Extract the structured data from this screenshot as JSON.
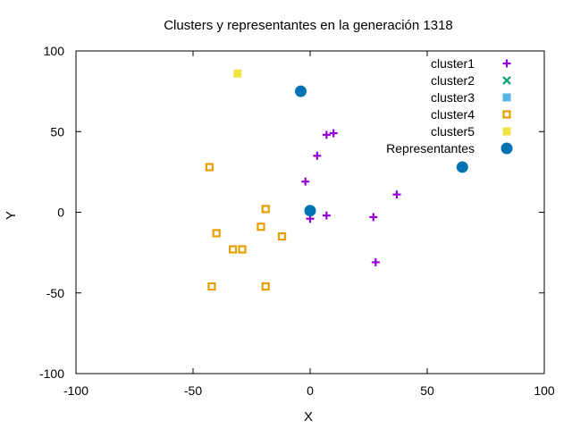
{
  "chart_data": {
    "type": "scatter",
    "title": "Clusters y representantes en la generación 1318",
    "xlabel": "X",
    "ylabel": "Y",
    "xlim": [
      -100,
      100
    ],
    "ylim": [
      -100,
      100
    ],
    "xticks": [
      -100,
      -50,
      0,
      50,
      100
    ],
    "yticks": [
      -100,
      -50,
      0,
      50,
      100
    ],
    "grid": false,
    "legend_position": "top-right",
    "series": [
      {
        "name": "cluster1",
        "color": "#9400d3",
        "marker": "plus",
        "points": [
          [
            -2,
            19
          ],
          [
            3,
            35
          ],
          [
            7,
            48
          ],
          [
            10,
            49
          ],
          [
            37,
            11
          ],
          [
            27,
            -3
          ],
          [
            0,
            -4
          ],
          [
            7,
            -2
          ],
          [
            28,
            -31
          ]
        ]
      },
      {
        "name": "cluster2",
        "color": "#009e73",
        "marker": "cross",
        "points": []
      },
      {
        "name": "cluster3",
        "color": "#56b4e9",
        "marker": "square-filled",
        "points": []
      },
      {
        "name": "cluster4",
        "color": "#e69f00",
        "marker": "square-open",
        "points": [
          [
            -43,
            28
          ],
          [
            -19,
            2
          ],
          [
            -21,
            -9
          ],
          [
            -40,
            -13
          ],
          [
            -12,
            -15
          ],
          [
            -29,
            -23
          ],
          [
            -33,
            -23
          ],
          [
            -42,
            -46
          ],
          [
            -19,
            -46
          ]
        ]
      },
      {
        "name": "cluster5",
        "color": "#f0e442",
        "marker": "square-filled",
        "points": [
          [
            -31,
            86
          ]
        ]
      },
      {
        "name": "Representantes",
        "color": "#0072b2",
        "marker": "circle",
        "points": [
          [
            -4,
            75
          ],
          [
            65,
            28
          ],
          [
            0,
            1
          ]
        ]
      }
    ]
  }
}
